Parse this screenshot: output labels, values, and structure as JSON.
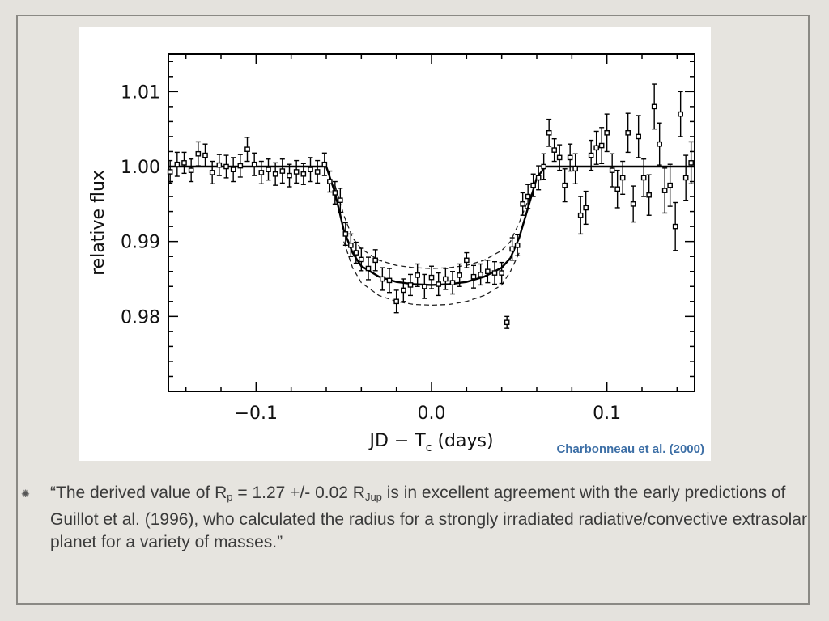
{
  "figure": {
    "credit": "Charbonneau et al. (2000)"
  },
  "quote": {
    "part1": "“The derived value of R",
    "sub1": "p",
    "part2": " = 1.27 +/- 0.02 R",
    "sub2": "Jup",
    "part3": " is in excellent agreement with the early predictions of Guillot et al. (1996), who calculated the radius for a strongly irradiated radiative/convective extrasolar planet for a variety of masses.”"
  },
  "chart_data": {
    "type": "scatter",
    "title": "",
    "xlabel": "JD − T",
    "xlabel_sub": "c",
    "xlabel_units": " (days)",
    "ylabel": "relative flux",
    "xlim": [
      -0.15,
      0.15
    ],
    "ylim": [
      0.97,
      1.015
    ],
    "x_ticks": [
      -0.1,
      0.0,
      0.1
    ],
    "x_tick_labels": [
      "−0.1",
      "0.0",
      "0.1"
    ],
    "y_ticks": [
      0.98,
      0.99,
      1.0,
      1.01
    ],
    "y_tick_labels": [
      "0.98",
      "0.99",
      "1.00",
      "1.01"
    ],
    "grid": false,
    "model_curve": {
      "x": [
        -0.15,
        -0.06,
        -0.055,
        -0.05,
        -0.045,
        -0.04,
        -0.03,
        -0.02,
        -0.01,
        0.0,
        0.01,
        0.02,
        0.03,
        0.04,
        0.045,
        0.05,
        0.055,
        0.06,
        0.065,
        0.15
      ],
      "y": [
        1.0,
        1.0,
        0.9965,
        0.9915,
        0.9885,
        0.9867,
        0.9853,
        0.9846,
        0.9843,
        0.9842,
        0.9843,
        0.9846,
        0.9853,
        0.9865,
        0.9878,
        0.9905,
        0.9945,
        0.9985,
        1.0,
        1.0
      ]
    },
    "model_upper": {
      "x": [
        -0.055,
        -0.05,
        -0.045,
        -0.04,
        -0.03,
        -0.02,
        -0.01,
        0.0,
        0.01,
        0.02,
        0.03,
        0.04,
        0.045,
        0.05,
        0.055
      ],
      "y": [
        0.9975,
        0.9935,
        0.9905,
        0.989,
        0.9875,
        0.9868,
        0.9865,
        0.9864,
        0.9865,
        0.9868,
        0.9875,
        0.9888,
        0.99,
        0.9925,
        0.9955
      ]
    },
    "model_lower": {
      "x": [
        -0.05,
        -0.045,
        -0.04,
        -0.03,
        -0.02,
        -0.01,
        0.0,
        0.01,
        0.02,
        0.03,
        0.04,
        0.045,
        0.05
      ],
      "y": [
        0.99,
        0.9865,
        0.9845,
        0.9828,
        0.982,
        0.9816,
        0.9815,
        0.9816,
        0.982,
        0.9828,
        0.9842,
        0.986,
        0.9885
      ]
    },
    "points": [
      {
        "x": -0.149,
        "y": 0.9993,
        "err": 0.0015
      },
      {
        "x": -0.145,
        "y": 1.0003,
        "err": 0.0016
      },
      {
        "x": -0.141,
        "y": 1.0005,
        "err": 0.0014
      },
      {
        "x": -0.137,
        "y": 0.9995,
        "err": 0.0015
      },
      {
        "x": -0.133,
        "y": 1.0017,
        "err": 0.0016
      },
      {
        "x": -0.129,
        "y": 1.0015,
        "err": 0.0015
      },
      {
        "x": -0.125,
        "y": 0.9992,
        "err": 0.0015
      },
      {
        "x": -0.121,
        "y": 1.0002,
        "err": 0.0014
      },
      {
        "x": -0.117,
        "y": 1.0,
        "err": 0.0015
      },
      {
        "x": -0.113,
        "y": 0.9996,
        "err": 0.0016
      },
      {
        "x": -0.109,
        "y": 1.0001,
        "err": 0.0015
      },
      {
        "x": -0.105,
        "y": 1.0023,
        "err": 0.0016
      },
      {
        "x": -0.101,
        "y": 1.0003,
        "err": 0.0015
      },
      {
        "x": -0.097,
        "y": 0.9992,
        "err": 0.0015
      },
      {
        "x": -0.093,
        "y": 0.9996,
        "err": 0.0014
      },
      {
        "x": -0.089,
        "y": 0.999,
        "err": 0.0015
      },
      {
        "x": -0.085,
        "y": 0.9994,
        "err": 0.0016
      },
      {
        "x": -0.081,
        "y": 0.9988,
        "err": 0.0015
      },
      {
        "x": -0.077,
        "y": 0.9993,
        "err": 0.0015
      },
      {
        "x": -0.073,
        "y": 0.999,
        "err": 0.0014
      },
      {
        "x": -0.069,
        "y": 0.9996,
        "err": 0.0016
      },
      {
        "x": -0.065,
        "y": 0.9993,
        "err": 0.0015
      },
      {
        "x": -0.061,
        "y": 1.0003,
        "err": 0.0015
      },
      {
        "x": -0.058,
        "y": 0.998,
        "err": 0.0014
      },
      {
        "x": -0.055,
        "y": 0.9965,
        "err": 0.0015
      },
      {
        "x": -0.052,
        "y": 0.9955,
        "err": 0.0016
      },
      {
        "x": -0.049,
        "y": 0.991,
        "err": 0.0015
      },
      {
        "x": -0.046,
        "y": 0.9895,
        "err": 0.0015
      },
      {
        "x": -0.043,
        "y": 0.9885,
        "err": 0.0014
      },
      {
        "x": -0.04,
        "y": 0.9876,
        "err": 0.0015
      },
      {
        "x": -0.036,
        "y": 0.9864,
        "err": 0.0015
      },
      {
        "x": -0.032,
        "y": 0.9875,
        "err": 0.0014
      },
      {
        "x": -0.028,
        "y": 0.985,
        "err": 0.0015
      },
      {
        "x": -0.024,
        "y": 0.9848,
        "err": 0.0016
      },
      {
        "x": -0.02,
        "y": 0.982,
        "err": 0.0015
      },
      {
        "x": -0.016,
        "y": 0.9835,
        "err": 0.0015
      },
      {
        "x": -0.012,
        "y": 0.9842,
        "err": 0.0014
      },
      {
        "x": -0.008,
        "y": 0.9855,
        "err": 0.0015
      },
      {
        "x": -0.004,
        "y": 0.984,
        "err": 0.0016
      },
      {
        "x": 0.0,
        "y": 0.9852,
        "err": 0.0015
      },
      {
        "x": 0.004,
        "y": 0.9843,
        "err": 0.0015
      },
      {
        "x": 0.008,
        "y": 0.985,
        "err": 0.0014
      },
      {
        "x": 0.012,
        "y": 0.9845,
        "err": 0.0015
      },
      {
        "x": 0.016,
        "y": 0.9855,
        "err": 0.0015
      },
      {
        "x": 0.02,
        "y": 0.9875,
        "err": 0.001
      },
      {
        "x": 0.024,
        "y": 0.9853,
        "err": 0.0015
      },
      {
        "x": 0.028,
        "y": 0.9856,
        "err": 0.0014
      },
      {
        "x": 0.032,
        "y": 0.986,
        "err": 0.0015
      },
      {
        "x": 0.036,
        "y": 0.9858,
        "err": 0.0015
      },
      {
        "x": 0.04,
        "y": 0.9858,
        "err": 0.0014
      },
      {
        "x": 0.043,
        "y": 0.9792,
        "err": 0.0008
      },
      {
        "x": 0.046,
        "y": 0.989,
        "err": 0.0015
      },
      {
        "x": 0.049,
        "y": 0.9895,
        "err": 0.0014
      },
      {
        "x": 0.052,
        "y": 0.995,
        "err": 0.0015
      },
      {
        "x": 0.055,
        "y": 0.996,
        "err": 0.0016
      },
      {
        "x": 0.058,
        "y": 0.9975,
        "err": 0.0015
      },
      {
        "x": 0.061,
        "y": 0.9985,
        "err": 0.0016
      },
      {
        "x": 0.064,
        "y": 1.0,
        "err": 0.0017
      },
      {
        "x": 0.067,
        "y": 1.0045,
        "err": 0.0018
      },
      {
        "x": 0.07,
        "y": 1.0022,
        "err": 0.0015
      },
      {
        "x": 0.073,
        "y": 1.0012,
        "err": 0.0017
      },
      {
        "x": 0.076,
        "y": 0.9975,
        "err": 0.0022
      },
      {
        "x": 0.079,
        "y": 1.0012,
        "err": 0.0018
      },
      {
        "x": 0.082,
        "y": 0.9997,
        "err": 0.002
      },
      {
        "x": 0.085,
        "y": 0.9935,
        "err": 0.0025
      },
      {
        "x": 0.088,
        "y": 0.9945,
        "err": 0.0022
      },
      {
        "x": 0.091,
        "y": 1.0015,
        "err": 0.002
      },
      {
        "x": 0.094,
        "y": 1.0025,
        "err": 0.0022
      },
      {
        "x": 0.097,
        "y": 1.0028,
        "err": 0.0024
      },
      {
        "x": 0.1,
        "y": 1.0045,
        "err": 0.0025
      },
      {
        "x": 0.103,
        "y": 0.9995,
        "err": 0.0022
      },
      {
        "x": 0.106,
        "y": 0.997,
        "err": 0.0025
      },
      {
        "x": 0.109,
        "y": 0.9985,
        "err": 0.0022
      },
      {
        "x": 0.112,
        "y": 1.0045,
        "err": 0.0026
      },
      {
        "x": 0.115,
        "y": 0.995,
        "err": 0.0024
      },
      {
        "x": 0.118,
        "y": 1.004,
        "err": 0.0028
      },
      {
        "x": 0.121,
        "y": 0.9985,
        "err": 0.0025
      },
      {
        "x": 0.124,
        "y": 0.9962,
        "err": 0.0027
      },
      {
        "x": 0.127,
        "y": 1.008,
        "err": 0.003
      },
      {
        "x": 0.13,
        "y": 1.003,
        "err": 0.0028
      },
      {
        "x": 0.133,
        "y": 0.9968,
        "err": 0.003
      },
      {
        "x": 0.136,
        "y": 0.9975,
        "err": 0.0028
      },
      {
        "x": 0.139,
        "y": 0.992,
        "err": 0.0032
      },
      {
        "x": 0.142,
        "y": 1.007,
        "err": 0.003
      },
      {
        "x": 0.145,
        "y": 0.9985,
        "err": 0.003
      },
      {
        "x": 0.148,
        "y": 1.0005,
        "err": 0.0028
      }
    ]
  }
}
